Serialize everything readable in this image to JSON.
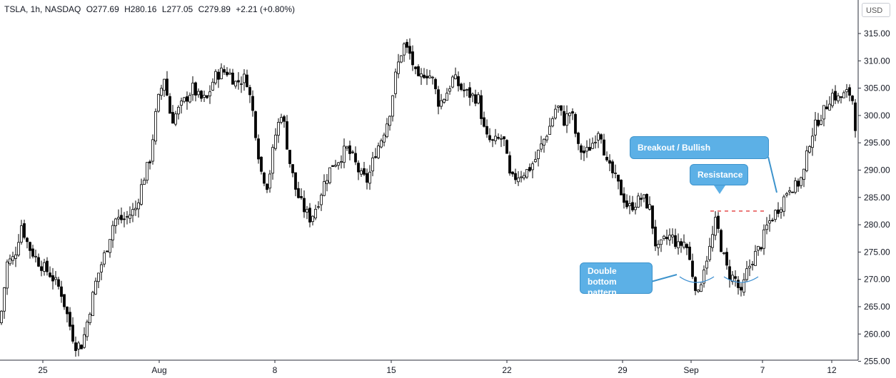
{
  "legend": {
    "symbol": "TSLA, 1h, NASDAQ",
    "open": "O277.69",
    "high": "H280.16",
    "low": "L277.05",
    "close": "C279.89",
    "change": "+2.21 (+0.80%)"
  },
  "currency_button": "USD",
  "annotations": {
    "breakout": "Breakout / Bullish confirmation",
    "resistance": "Resistance",
    "double_bottom": "Double bottom pattern"
  },
  "colors": {
    "candle": "#000000",
    "resistance_line": "#e23b3b",
    "callout_fill": "#5cb0e6",
    "pattern_arc": "#3d8fd1"
  },
  "chart_data": {
    "type": "candlestick",
    "ylim": [
      250,
      316
    ],
    "yticks": [
      "315.00",
      "310.00",
      "305.00",
      "300.00",
      "295.00",
      "290.00",
      "285.00",
      "280.00",
      "275.00",
      "270.00",
      "265.00",
      "260.00",
      "255.00",
      "250.00"
    ],
    "xticks": [
      "25",
      "Aug",
      "8",
      "15",
      "22",
      "29",
      "Sep",
      "7",
      "12"
    ],
    "resistance_level": 282.5,
    "close_path": [
      [
        0,
        262
      ],
      [
        10,
        273
      ],
      [
        20,
        274
      ],
      [
        30,
        280
      ],
      [
        40,
        276
      ],
      [
        55,
        273
      ],
      [
        70,
        271
      ],
      [
        85,
        268
      ],
      [
        95,
        263
      ],
      [
        105,
        258
      ],
      [
        115,
        258
      ],
      [
        125,
        264
      ],
      [
        135,
        270
      ],
      [
        150,
        276
      ],
      [
        160,
        281
      ],
      [
        175,
        281
      ],
      [
        190,
        283
      ],
      [
        200,
        288
      ],
      [
        210,
        292
      ],
      [
        220,
        302
      ],
      [
        230,
        307
      ],
      [
        240,
        299
      ],
      [
        250,
        301
      ],
      [
        260,
        303
      ],
      [
        270,
        305
      ],
      [
        280,
        303
      ],
      [
        290,
        303
      ],
      [
        300,
        307
      ],
      [
        310,
        308
      ],
      [
        320,
        308
      ],
      [
        330,
        306
      ],
      [
        345,
        307
      ],
      [
        355,
        300
      ],
      [
        365,
        290
      ],
      [
        375,
        287
      ],
      [
        385,
        296
      ],
      [
        395,
        301
      ],
      [
        405,
        292
      ],
      [
        415,
        286
      ],
      [
        425,
        283
      ],
      [
        435,
        281
      ],
      [
        445,
        284
      ],
      [
        455,
        288
      ],
      [
        465,
        291
      ],
      [
        475,
        292
      ],
      [
        485,
        294
      ],
      [
        495,
        292
      ],
      [
        505,
        289
      ],
      [
        515,
        288
      ],
      [
        525,
        293
      ],
      [
        535,
        296
      ],
      [
        545,
        300
      ],
      [
        555,
        308
      ],
      [
        565,
        313
      ],
      [
        575,
        311
      ],
      [
        585,
        306
      ],
      [
        595,
        308
      ],
      [
        605,
        307
      ],
      [
        615,
        302
      ],
      [
        625,
        304
      ],
      [
        635,
        307
      ],
      [
        645,
        305
      ],
      [
        655,
        304
      ],
      [
        670,
        303
      ],
      [
        680,
        296
      ],
      [
        690,
        295
      ],
      [
        705,
        296
      ],
      [
        715,
        288
      ],
      [
        725,
        289
      ],
      [
        740,
        290
      ],
      [
        750,
        292
      ],
      [
        760,
        295
      ],
      [
        770,
        298
      ],
      [
        780,
        302
      ],
      [
        790,
        299
      ],
      [
        800,
        301
      ],
      [
        810,
        294
      ],
      [
        820,
        293
      ],
      [
        830,
        295
      ],
      [
        840,
        298
      ],
      [
        850,
        291
      ],
      [
        860,
        289
      ],
      [
        870,
        286
      ],
      [
        880,
        283
      ],
      [
        890,
        284
      ],
      [
        900,
        285
      ],
      [
        910,
        283
      ],
      [
        920,
        275
      ],
      [
        930,
        277
      ],
      [
        940,
        278
      ],
      [
        950,
        276
      ],
      [
        960,
        277
      ],
      [
        970,
        271
      ],
      [
        978,
        267
      ],
      [
        985,
        272
      ],
      [
        995,
        276
      ],
      [
        1003,
        281
      ],
      [
        1010,
        276
      ],
      [
        1020,
        271
      ],
      [
        1030,
        270
      ],
      [
        1038,
        267
      ],
      [
        1045,
        271
      ],
      [
        1055,
        274
      ],
      [
        1065,
        276
      ],
      [
        1075,
        280
      ],
      [
        1085,
        282
      ],
      [
        1095,
        284
      ],
      [
        1105,
        287
      ],
      [
        1115,
        287
      ],
      [
        1125,
        289
      ],
      [
        1135,
        296
      ],
      [
        1145,
        299
      ],
      [
        1155,
        301
      ],
      [
        1165,
        304
      ],
      [
        1175,
        303
      ],
      [
        1185,
        304
      ],
      [
        1193,
        304
      ],
      [
        1200,
        296
      ]
    ]
  }
}
